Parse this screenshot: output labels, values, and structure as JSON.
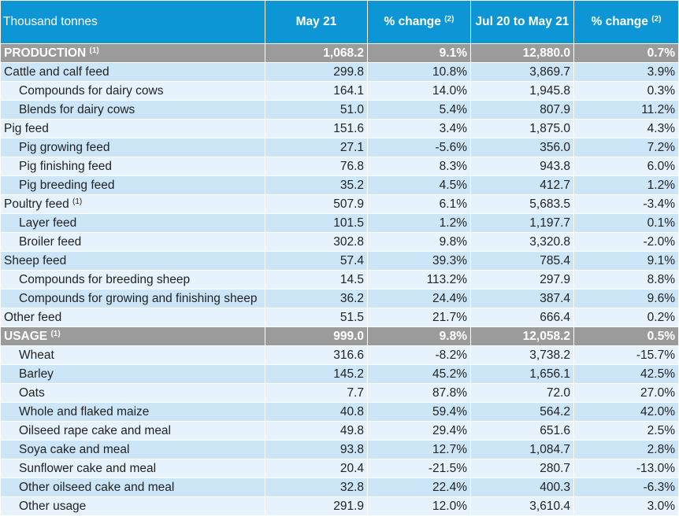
{
  "header": {
    "unit_label": "Thousand tonnes",
    "col1": "May 21",
    "col2": "% change",
    "col2_note": "(2)",
    "col3": "Jul 20 to May 21",
    "col4": "% change",
    "col4_note": "(2)"
  },
  "rows": [
    {
      "label": "PRODUCTION",
      "note": "(1)",
      "type": "section",
      "v1": "1,068.2",
      "v2": "9.1%",
      "v3": "12,880.0",
      "v4": "0.7%"
    },
    {
      "label": "Cattle and calf feed",
      "note": "",
      "type": "top",
      "v1": "299.8",
      "v2": "10.8%",
      "v3": "3,869.7",
      "v4": "3.9%"
    },
    {
      "label": "Compounds for dairy cows",
      "note": "",
      "type": "sub",
      "v1": "164.1",
      "v2": "14.0%",
      "v3": "1,945.8",
      "v4": "0.3%"
    },
    {
      "label": "Blends for dairy cows",
      "note": "",
      "type": "sub",
      "v1": "51.0",
      "v2": "5.4%",
      "v3": "807.9",
      "v4": "11.2%"
    },
    {
      "label": "Pig feed",
      "note": "",
      "type": "top",
      "v1": "151.6",
      "v2": "3.4%",
      "v3": "1,875.0",
      "v4": "4.3%"
    },
    {
      "label": "Pig growing feed",
      "note": "",
      "type": "sub",
      "v1": "27.1",
      "v2": "-5.6%",
      "v3": "356.0",
      "v4": "7.2%"
    },
    {
      "label": "Pig finishing feed",
      "note": "",
      "type": "sub",
      "v1": "76.8",
      "v2": "8.3%",
      "v3": "943.8",
      "v4": "6.0%"
    },
    {
      "label": "Pig breeding feed",
      "note": "",
      "type": "sub",
      "v1": "35.2",
      "v2": "4.5%",
      "v3": "412.7",
      "v4": "1.2%"
    },
    {
      "label": "Poultry feed",
      "note": "(1)",
      "type": "top",
      "v1": "507.9",
      "v2": "6.1%",
      "v3": "5,683.5",
      "v4": "-3.4%"
    },
    {
      "label": "Layer feed",
      "note": "",
      "type": "sub",
      "v1": "101.5",
      "v2": "1.2%",
      "v3": "1,197.7",
      "v4": "0.1%"
    },
    {
      "label": "Broiler feed",
      "note": "",
      "type": "sub",
      "v1": "302.8",
      "v2": "9.8%",
      "v3": "3,320.8",
      "v4": "-2.0%"
    },
    {
      "label": "Sheep feed",
      "note": "",
      "type": "top",
      "v1": "57.4",
      "v2": "39.3%",
      "v3": "785.4",
      "v4": "9.1%"
    },
    {
      "label": "Compounds for breeding sheep",
      "note": "",
      "type": "sub",
      "v1": "14.5",
      "v2": "113.2%",
      "v3": "297.9",
      "v4": "8.8%"
    },
    {
      "label": "Compounds for growing and finishing sheep",
      "note": "",
      "type": "sub",
      "v1": "36.2",
      "v2": "24.4%",
      "v3": "387.4",
      "v4": "9.6%"
    },
    {
      "label": "Other feed",
      "note": "",
      "type": "top",
      "v1": "51.5",
      "v2": "21.7%",
      "v3": "666.4",
      "v4": "0.2%"
    },
    {
      "label": "USAGE",
      "note": "(1)",
      "type": "section",
      "v1": "999.0",
      "v2": "9.8%",
      "v3": "12,058.2",
      "v4": "0.5%"
    },
    {
      "label": "Wheat",
      "note": "",
      "type": "sub",
      "v1": "316.6",
      "v2": "-8.2%",
      "v3": "3,738.2",
      "v4": "-15.7%"
    },
    {
      "label": "Barley",
      "note": "",
      "type": "sub",
      "v1": "145.2",
      "v2": "45.2%",
      "v3": "1,656.1",
      "v4": "42.5%"
    },
    {
      "label": "Oats",
      "note": "",
      "type": "sub",
      "v1": "7.7",
      "v2": "87.8%",
      "v3": "72.0",
      "v4": "27.0%"
    },
    {
      "label": "Whole and flaked maize",
      "note": "",
      "type": "sub",
      "v1": "40.8",
      "v2": "59.4%",
      "v3": "564.2",
      "v4": "42.0%"
    },
    {
      "label": "Oilseed rape cake and meal",
      "note": "",
      "type": "sub",
      "v1": "49.8",
      "v2": "29.4%",
      "v3": "651.6",
      "v4": "2.5%"
    },
    {
      "label": "Soya cake and meal",
      "note": "",
      "type": "sub",
      "v1": "93.8",
      "v2": "12.7%",
      "v3": "1,084.7",
      "v4": "2.8%"
    },
    {
      "label": "Sunflower cake and meal",
      "note": "",
      "type": "sub",
      "v1": "20.4",
      "v2": "-21.5%",
      "v3": "280.7",
      "v4": "-13.0%"
    },
    {
      "label": "Other oilseed cake and meal",
      "note": "",
      "type": "sub",
      "v1": "32.8",
      "v2": "22.4%",
      "v3": "400.3",
      "v4": "-6.3%"
    },
    {
      "label": "Other usage",
      "note": "",
      "type": "sub",
      "v1": "291.9",
      "v2": "12.0%",
      "v3": "3,610.4",
      "v4": "3.0%"
    }
  ]
}
